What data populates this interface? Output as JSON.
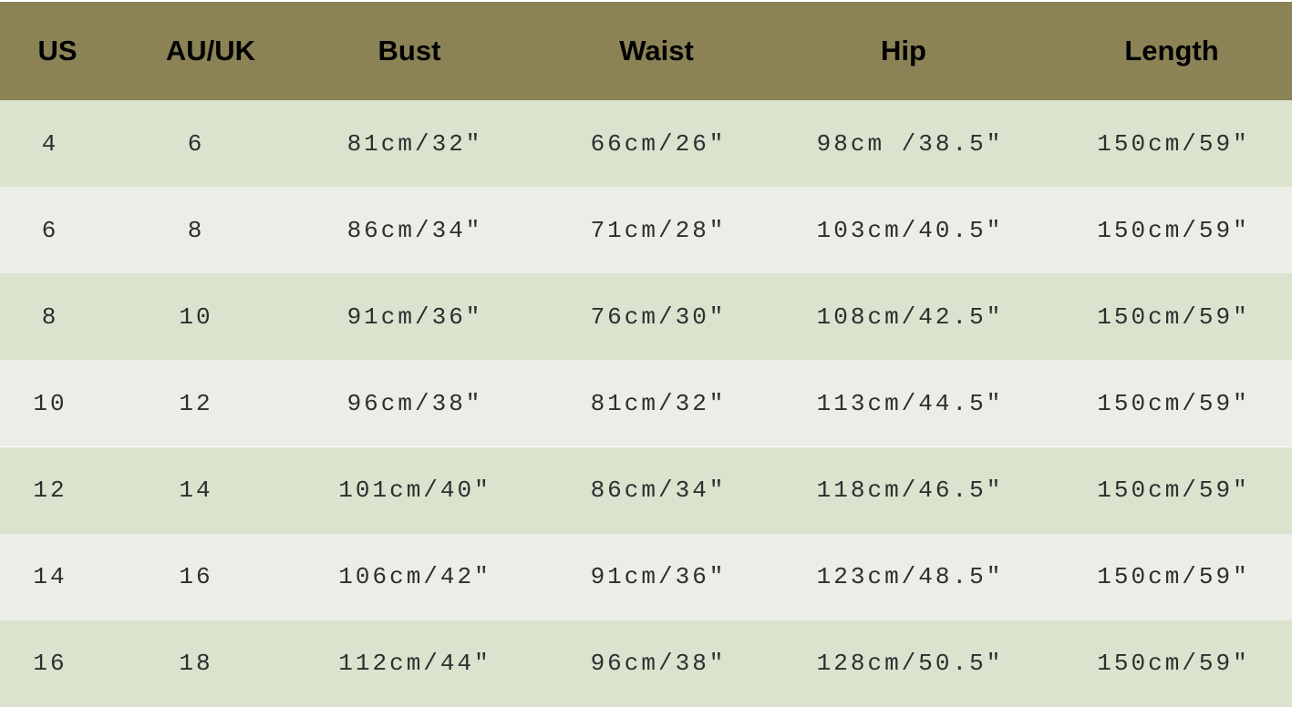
{
  "colors": {
    "header": "#8b8355",
    "row_odd": "#dbe3cf",
    "row_even": "#ebeee6"
  },
  "headers": [
    "US",
    "AU/UK",
    "Bust",
    "Waist",
    "Hip",
    "Length"
  ],
  "rows": [
    [
      "4",
      "6",
      "81cm/32″",
      "66cm/26″",
      "98cm /38.5″",
      "150cm/59″"
    ],
    [
      "6",
      "8",
      "86cm/34″",
      "71cm/28″",
      "103cm/40.5″",
      "150cm/59″"
    ],
    [
      "8",
      "10",
      "91cm/36″",
      "76cm/30″",
      "108cm/42.5″",
      "150cm/59″"
    ],
    [
      "10",
      "12",
      "96cm/38″",
      "81cm/32″",
      "113cm/44.5″",
      "150cm/59″"
    ],
    [
      "12",
      "14",
      "101cm/40″",
      "86cm/34″",
      "118cm/46.5″",
      "150cm/59″"
    ],
    [
      "14",
      "16",
      "106cm/42″",
      "91cm/36″",
      "123cm/48.5″",
      "150cm/59″"
    ],
    [
      "16",
      "18",
      "112cm/44″",
      "96cm/38″",
      "128cm/50.5″",
      "150cm/59″"
    ]
  ]
}
